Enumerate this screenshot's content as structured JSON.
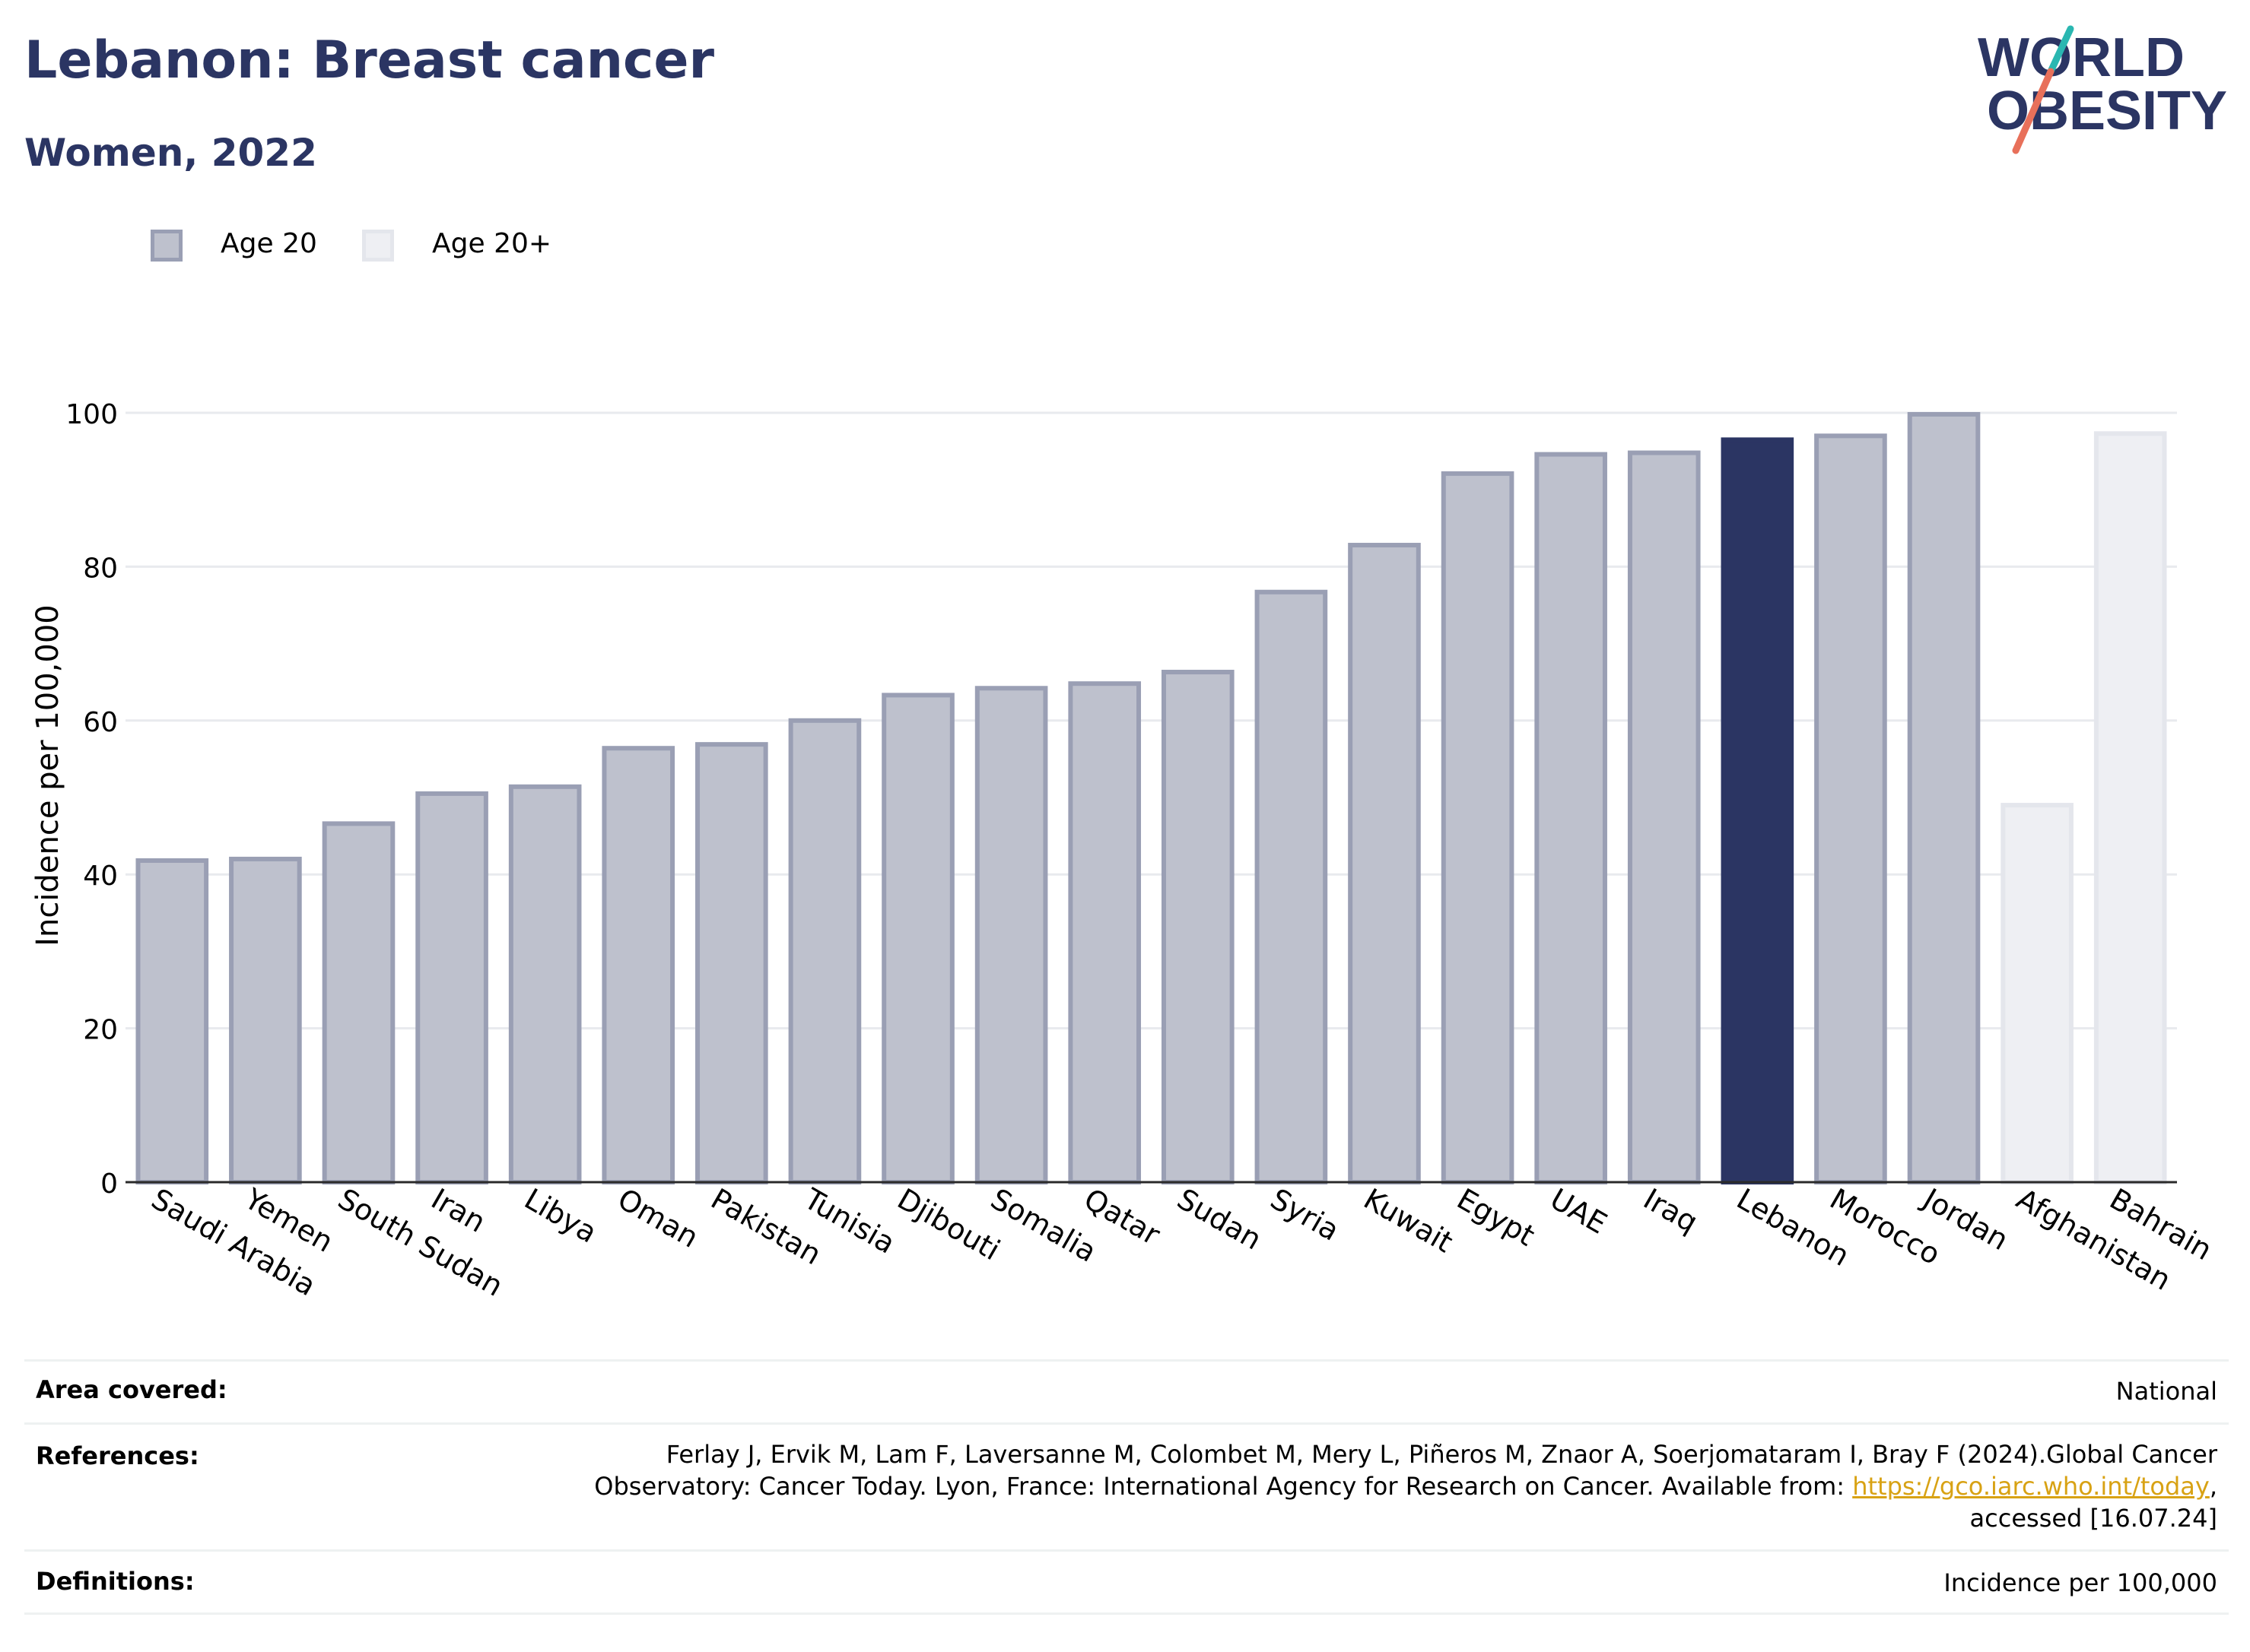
{
  "header": {
    "title": "Lebanon: Breast cancer",
    "subtitle": "Women, 2022"
  },
  "logo": {
    "line1": "WORLD",
    "line2": "OBESITY",
    "colors": {
      "text": "#2b3563",
      "slash_teal": "#2ab7b1",
      "slash_coral": "#e8705a"
    }
  },
  "legend": {
    "items": [
      {
        "label": "Age 20",
        "fill": "#bec1cd",
        "stroke": "#9a9fb4"
      },
      {
        "label": "Age 20+",
        "fill": "#eeeff3",
        "stroke": "#e4e6ec"
      }
    ]
  },
  "chart_data": {
    "type": "bar",
    "ylabel": "Incidence per 100,000",
    "xlabel": "",
    "ylim": [
      0,
      110
    ],
    "yticks": [
      0,
      20,
      40,
      60,
      80,
      100
    ],
    "grid": true,
    "highlight_color": "#2b3563",
    "categories": [
      "Saudi Arabia",
      "Yemen",
      "South Sudan",
      "Iran",
      "Libya",
      "Oman",
      "Pakistan",
      "Tunisia",
      "Djibouti",
      "Somalia",
      "Qatar",
      "Sudan",
      "Syria",
      "Kuwait",
      "Egypt",
      "UAE",
      "Iraq",
      "Lebanon",
      "Morocco",
      "Jordan",
      "Afghanistan",
      "Bahrain"
    ],
    "values": [
      42.1,
      42.3,
      46.9,
      50.8,
      51.7,
      56.7,
      57.2,
      60.3,
      63.6,
      64.5,
      65.1,
      66.6,
      77.0,
      83.1,
      92.4,
      94.9,
      95.1,
      96.8,
      97.3,
      100.1,
      49.3,
      97.6
    ],
    "groups": [
      "Age 20",
      "Age 20",
      "Age 20",
      "Age 20",
      "Age 20",
      "Age 20",
      "Age 20",
      "Age 20",
      "Age 20",
      "Age 20",
      "Age 20",
      "Age 20",
      "Age 20",
      "Age 20",
      "Age 20",
      "Age 20",
      "Age 20",
      "Age 20",
      "Age 20",
      "Age 20",
      "Age 20+",
      "Age 20+"
    ],
    "highlight": "Lebanon"
  },
  "footer": {
    "area_label": "Area covered:",
    "area_value": "National",
    "references_label": "References:",
    "references_text_1": "Ferlay J, Ervik M, Lam F, Laversanne M, Colombet M, Mery L, Piñeros M, Znaor A, Soerjomataram I, Bray F (2024).Global Cancer",
    "references_text_2": "Observatory: Cancer Today. Lyon, France: International Agency for Research on Cancer. Available from: ",
    "references_link": "https://gco.iarc.who.int/today",
    "references_text_3": ",",
    "references_text_4": "accessed [16.07.24]",
    "definitions_label": "Definitions:",
    "definitions_value": "Incidence per 100,000"
  }
}
